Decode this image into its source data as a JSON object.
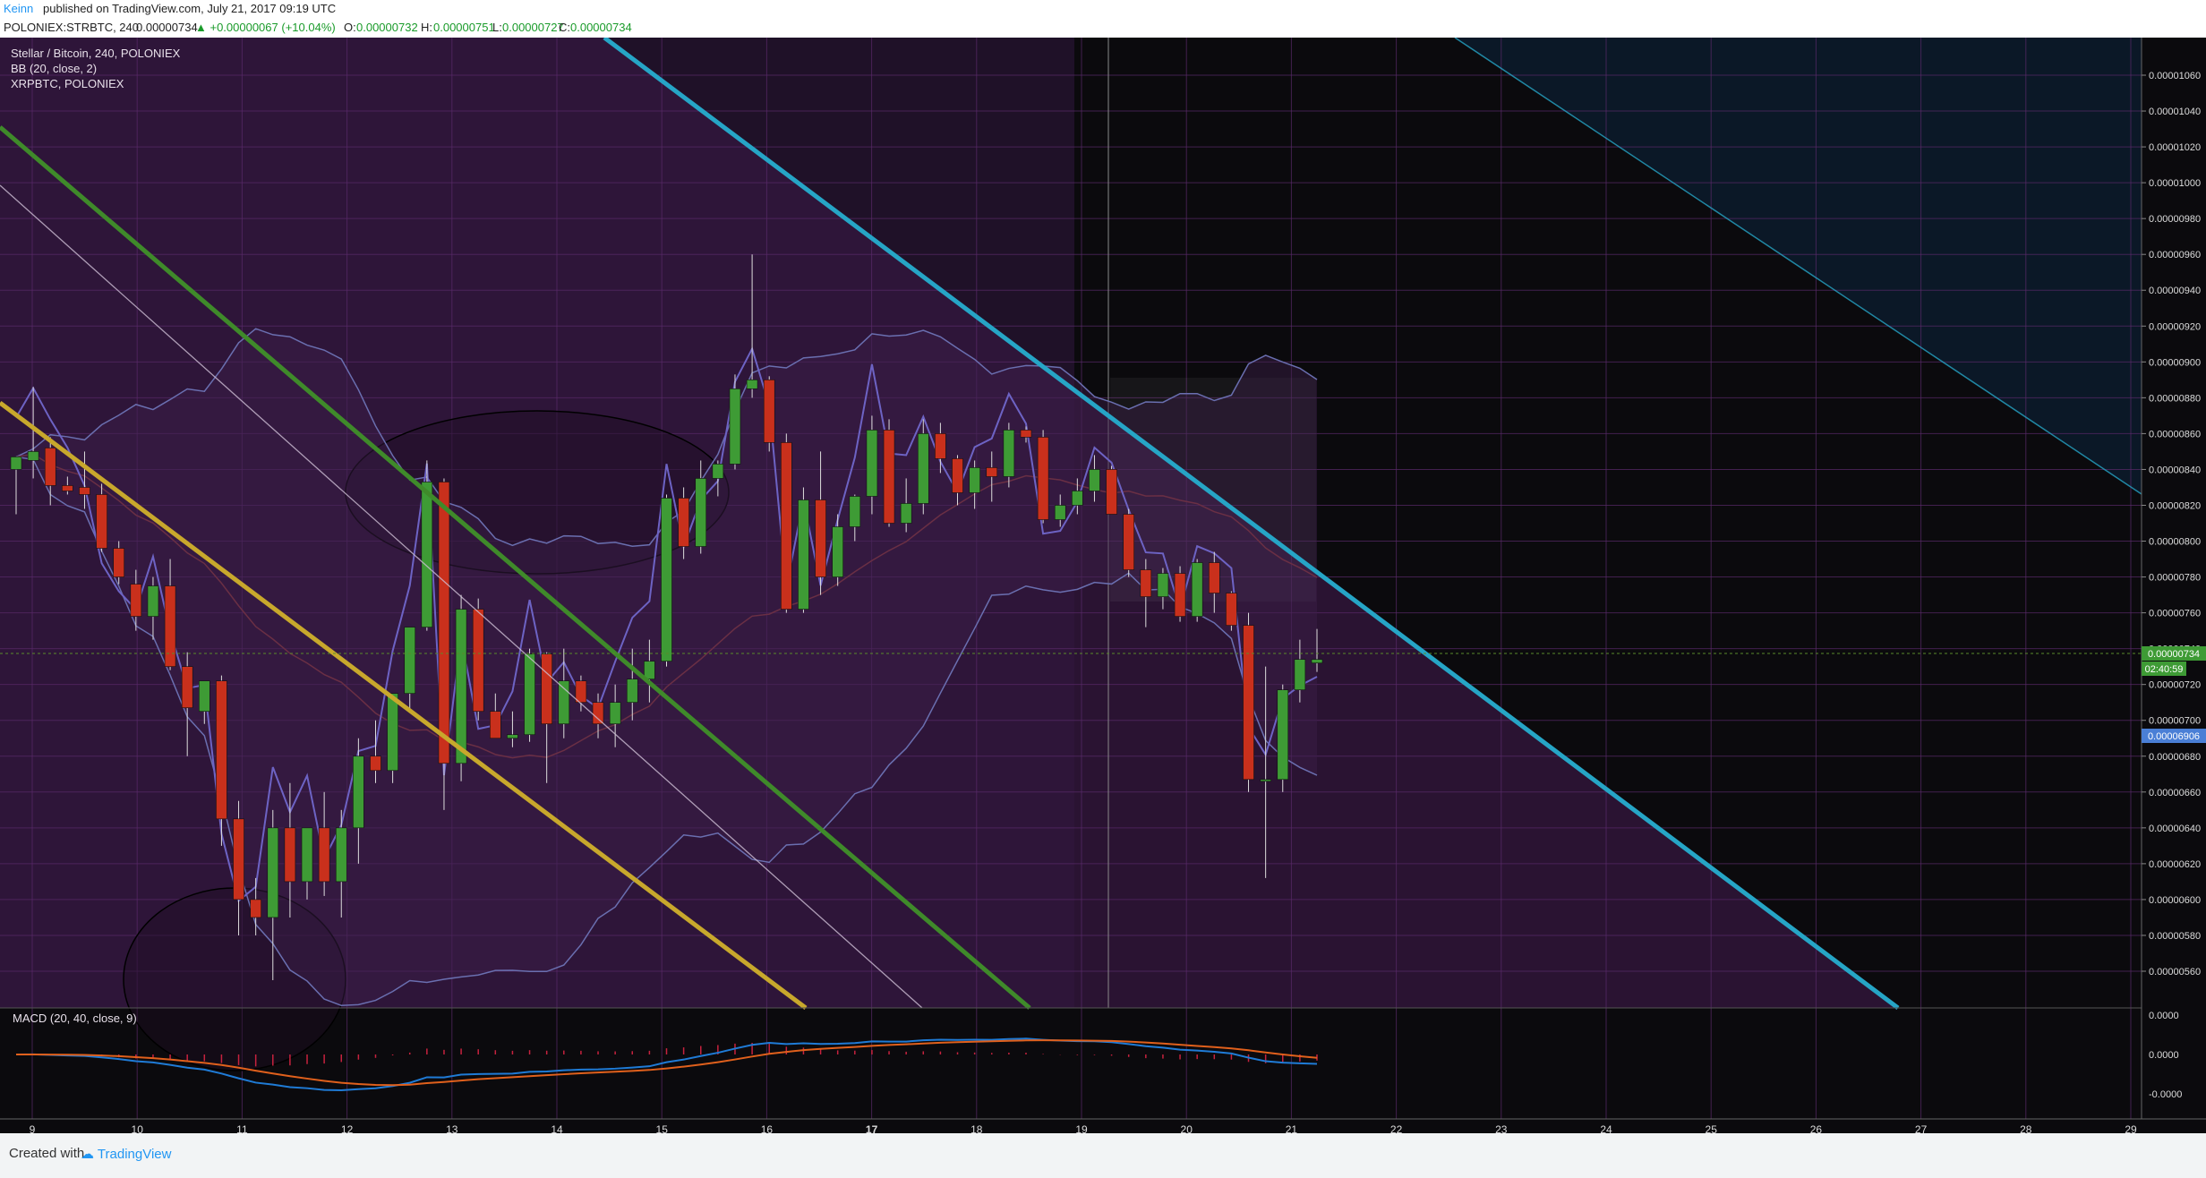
{
  "header": {
    "author": "Keinn",
    "published": "published on TradingView.com, July 21, 2017 09:19 UTC",
    "symbol": "POLONIEX:STRBTC, 240",
    "last": "0.00000734",
    "change": "▲ +0.00000067 (+10.04%)",
    "o_label": "O:",
    "o": "0.00000732",
    "h_label": "H:",
    "h": "0.00000751",
    "l_label": "L:",
    "l": "0.00000727",
    "c_label": "C:",
    "c": "0.00000734"
  },
  "legend": {
    "line1": "Stellar / Bitcoin, 240, POLONIEX",
    "line2": "BB (20, close, 2)",
    "line3": "XRPBTC, POLONIEX"
  },
  "macd_label": "MACD (20, 40, close, 9)",
  "price_badge": "0.00000734",
  "countdown_badge": "02:40:59",
  "compare_badge": "0.00006906",
  "footer": {
    "created_with": "Created with",
    "brand": "TradingView"
  },
  "colors": {
    "bg": "#21112a",
    "band_fill": "#3a1d44",
    "grid": "#5a2a6a",
    "up": "#3e9b35",
    "down": "#c9301c",
    "bb": "#6a2f44",
    "xrp": "#6d63c4",
    "blue_line": "#26a5c6",
    "green_line": "#3f8a2a",
    "yellow_line": "#c8a82c",
    "macd": "#1f7bd6",
    "signal": "#e0601c",
    "hist": "#c6223e"
  },
  "chart_data": {
    "type": "candlestick",
    "title": "Stellar / Bitcoin, 240, POLONIEX",
    "x_tick_labels": [
      "9",
      "10",
      "11",
      "12",
      "13",
      "14",
      "15",
      "16",
      "17",
      "18",
      "19",
      "20",
      "21",
      "22",
      "23",
      "24",
      "25",
      "26",
      "27",
      "28",
      "29"
    ],
    "y_tick_labels": [
      "0.00001060",
      "0.00001040",
      "0.00001020",
      "0.00001000",
      "0.00000980",
      "0.00000960",
      "0.00000940",
      "0.00000920",
      "0.00000900",
      "0.00000880",
      "0.00000860",
      "0.00000840",
      "0.00000820",
      "0.00000800",
      "0.00000780",
      "0.00000760",
      "0.00000740",
      "0.00000720",
      "0.00000700",
      "0.00000680",
      "0.00000660",
      "0.00000640",
      "0.00000620",
      "0.00000600",
      "0.00000580",
      "0.00000560"
    ],
    "ylim": [
      5.4e-06,
      1.07e-05
    ],
    "candles": [
      {
        "o": 8.4e-06,
        "h": 8.46e-06,
        "l": 8.15e-06,
        "c": 8.47e-06
      },
      {
        "o": 8.45e-06,
        "h": 8.86e-06,
        "l": 8.35e-06,
        "c": 8.5e-06
      },
      {
        "o": 8.52e-06,
        "h": 8.58e-06,
        "l": 8.2e-06,
        "c": 8.31e-06
      },
      {
        "o": 8.31e-06,
        "h": 8.36e-06,
        "l": 8.26e-06,
        "c": 8.28e-06
      },
      {
        "o": 8.3e-06,
        "h": 8.5e-06,
        "l": 8.18e-06,
        "c": 8.26e-06
      },
      {
        "o": 8.26e-06,
        "h": 8.32e-06,
        "l": 7.94e-06,
        "c": 7.96e-06
      },
      {
        "o": 7.96e-06,
        "h": 8e-06,
        "l": 7.76e-06,
        "c": 7.8e-06
      },
      {
        "o": 7.76e-06,
        "h": 7.84e-06,
        "l": 7.5e-06,
        "c": 7.58e-06
      },
      {
        "o": 7.58e-06,
        "h": 7.8e-06,
        "l": 7.45e-06,
        "c": 7.75e-06
      },
      {
        "o": 7.75e-06,
        "h": 7.9e-06,
        "l": 7.28e-06,
        "c": 7.3e-06
      },
      {
        "o": 7.3e-06,
        "h": 7.38e-06,
        "l": 6.8e-06,
        "c": 7.07e-06
      },
      {
        "o": 7.05e-06,
        "h": 7.22e-06,
        "l": 6.98e-06,
        "c": 7.22e-06
      },
      {
        "o": 7.22e-06,
        "h": 7.25e-06,
        "l": 6.3e-06,
        "c": 6.45e-06
      },
      {
        "o": 6.45e-06,
        "h": 6.55e-06,
        "l": 5.8e-06,
        "c": 6e-06
      },
      {
        "o": 6e-06,
        "h": 6.12e-06,
        "l": 5.8e-06,
        "c": 5.9e-06
      },
      {
        "o": 5.9e-06,
        "h": 6.5e-06,
        "l": 5.55e-06,
        "c": 6.4e-06
      },
      {
        "o": 6.4e-06,
        "h": 6.65e-06,
        "l": 5.9e-06,
        "c": 6.1e-06
      },
      {
        "o": 6.1e-06,
        "h": 6.4e-06,
        "l": 6e-06,
        "c": 6.4e-06
      },
      {
        "o": 6.4e-06,
        "h": 6.6e-06,
        "l": 6.02e-06,
        "c": 6.1e-06
      },
      {
        "o": 6.1e-06,
        "h": 6.5e-06,
        "l": 5.9e-06,
        "c": 6.4e-06
      },
      {
        "o": 6.4e-06,
        "h": 6.9e-06,
        "l": 6.2e-06,
        "c": 6.8e-06
      },
      {
        "o": 6.8e-06,
        "h": 7e-06,
        "l": 6.65e-06,
        "c": 6.72e-06
      },
      {
        "o": 6.72e-06,
        "h": 7.15e-06,
        "l": 6.65e-06,
        "c": 7.15e-06
      },
      {
        "o": 7.15e-06,
        "h": 7.5e-06,
        "l": 7.05e-06,
        "c": 7.52e-06
      },
      {
        "o": 7.52e-06,
        "h": 8.45e-06,
        "l": 7.5e-06,
        "c": 8.33e-06
      },
      {
        "o": 8.33e-06,
        "h": 8.35e-06,
        "l": 6.5e-06,
        "c": 6.76e-06
      },
      {
        "o": 6.76e-06,
        "h": 7.7e-06,
        "l": 6.66e-06,
        "c": 7.62e-06
      },
      {
        "o": 7.62e-06,
        "h": 7.68e-06,
        "l": 7e-06,
        "c": 7.05e-06
      },
      {
        "o": 7.05e-06,
        "h": 7.15e-06,
        "l": 6.9e-06,
        "c": 6.9e-06
      },
      {
        "o": 6.9e-06,
        "h": 7.05e-06,
        "l": 6.85e-06,
        "c": 6.92e-06
      },
      {
        "o": 6.92e-06,
        "h": 7.4e-06,
        "l": 6.88e-06,
        "c": 7.37e-06
      },
      {
        "o": 7.37e-06,
        "h": 7.38e-06,
        "l": 6.65e-06,
        "c": 6.98e-06
      },
      {
        "o": 6.98e-06,
        "h": 7.4e-06,
        "l": 6.9e-06,
        "c": 7.22e-06
      },
      {
        "o": 7.22e-06,
        "h": 7.25e-06,
        "l": 7.05e-06,
        "c": 7.1e-06
      },
      {
        "o": 7.1e-06,
        "h": 7.15e-06,
        "l": 6.9e-06,
        "c": 6.98e-06
      },
      {
        "o": 6.98e-06,
        "h": 7.2e-06,
        "l": 6.85e-06,
        "c": 7.1e-06
      },
      {
        "o": 7.1e-06,
        "h": 7.4e-06,
        "l": 7e-06,
        "c": 7.23e-06
      },
      {
        "o": 7.23e-06,
        "h": 7.45e-06,
        "l": 7.1e-06,
        "c": 7.33e-06
      },
      {
        "o": 7.33e-06,
        "h": 8.26e-06,
        "l": 7.3e-06,
        "c": 8.24e-06
      },
      {
        "o": 8.24e-06,
        "h": 8.3e-06,
        "l": 7.9e-06,
        "c": 7.97e-06
      },
      {
        "o": 7.97e-06,
        "h": 8.45e-06,
        "l": 7.93e-06,
        "c": 8.35e-06
      },
      {
        "o": 8.35e-06,
        "h": 8.45e-06,
        "l": 8.25e-06,
        "c": 8.43e-06
      },
      {
        "o": 8.43e-06,
        "h": 8.93e-06,
        "l": 8.4e-06,
        "c": 8.85e-06
      },
      {
        "o": 8.85e-06,
        "h": 9.6e-06,
        "l": 8.8e-06,
        "c": 8.9e-06
      },
      {
        "o": 8.9e-06,
        "h": 8.92e-06,
        "l": 8.5e-06,
        "c": 8.55e-06
      },
      {
        "o": 8.55e-06,
        "h": 8.6e-06,
        "l": 7.6e-06,
        "c": 7.62e-06
      },
      {
        "o": 7.62e-06,
        "h": 8.3e-06,
        "l": 7.6e-06,
        "c": 8.23e-06
      },
      {
        "o": 8.23e-06,
        "h": 8.5e-06,
        "l": 7.7e-06,
        "c": 7.8e-06
      },
      {
        "o": 7.8e-06,
        "h": 8.15e-06,
        "l": 7.75e-06,
        "c": 8.08e-06
      },
      {
        "o": 8.08e-06,
        "h": 8.26e-06,
        "l": 8e-06,
        "c": 8.25e-06
      },
      {
        "o": 8.25e-06,
        "h": 8.7e-06,
        "l": 8.15e-06,
        "c": 8.62e-06
      },
      {
        "o": 8.62e-06,
        "h": 8.68e-06,
        "l": 8.08e-06,
        "c": 8.1e-06
      },
      {
        "o": 8.1e-06,
        "h": 8.35e-06,
        "l": 8.05e-06,
        "c": 8.21e-06
      },
      {
        "o": 8.21e-06,
        "h": 8.68e-06,
        "l": 8.15e-06,
        "c": 8.6e-06
      },
      {
        "o": 8.6e-06,
        "h": 8.66e-06,
        "l": 8.38e-06,
        "c": 8.46e-06
      },
      {
        "o": 8.46e-06,
        "h": 8.48e-06,
        "l": 8.2e-06,
        "c": 8.27e-06
      },
      {
        "o": 8.27e-06,
        "h": 8.45e-06,
        "l": 8.18e-06,
        "c": 8.41e-06
      },
      {
        "o": 8.41e-06,
        "h": 8.5e-06,
        "l": 8.22e-06,
        "c": 8.36e-06
      },
      {
        "o": 8.36e-06,
        "h": 8.66e-06,
        "l": 8.3e-06,
        "c": 8.62e-06
      },
      {
        "o": 8.62e-06,
        "h": 8.64e-06,
        "l": 8.55e-06,
        "c": 8.58e-06
      },
      {
        "o": 8.58e-06,
        "h": 8.62e-06,
        "l": 8.1e-06,
        "c": 8.12e-06
      },
      {
        "o": 8.12e-06,
        "h": 8.26e-06,
        "l": 8.08e-06,
        "c": 8.2e-06
      },
      {
        "o": 8.2e-06,
        "h": 8.35e-06,
        "l": 8.15e-06,
        "c": 8.28e-06
      },
      {
        "o": 8.28e-06,
        "h": 8.48e-06,
        "l": 8.22e-06,
        "c": 8.4e-06
      },
      {
        "o": 8.4e-06,
        "h": 8.42e-06,
        "l": 8.15e-06,
        "c": 8.15e-06
      },
      {
        "o": 8.15e-06,
        "h": 8.18e-06,
        "l": 7.8e-06,
        "c": 7.84e-06
      },
      {
        "o": 7.84e-06,
        "h": 7.9e-06,
        "l": 7.52e-06,
        "c": 7.69e-06
      },
      {
        "o": 7.69e-06,
        "h": 7.85e-06,
        "l": 7.62e-06,
        "c": 7.82e-06
      },
      {
        "o": 7.82e-06,
        "h": 7.86e-06,
        "l": 7.55e-06,
        "c": 7.58e-06
      },
      {
        "o": 7.58e-06,
        "h": 7.9e-06,
        "l": 7.55e-06,
        "c": 7.88e-06
      },
      {
        "o": 7.88e-06,
        "h": 7.94e-06,
        "l": 7.6e-06,
        "c": 7.71e-06
      },
      {
        "o": 7.71e-06,
        "h": 7.72e-06,
        "l": 7.5e-06,
        "c": 7.53e-06
      },
      {
        "o": 7.53e-06,
        "h": 7.6e-06,
        "l": 6.6e-06,
        "c": 6.67e-06
      },
      {
        "o": 6.67e-06,
        "h": 7.3e-06,
        "l": 6.12e-06,
        "c": 6.67e-06
      },
      {
        "o": 6.67e-06,
        "h": 7.2e-06,
        "l": 6.6e-06,
        "c": 7.17e-06
      },
      {
        "o": 7.17e-06,
        "h": 7.45e-06,
        "l": 7.1e-06,
        "c": 7.34e-06
      },
      {
        "o": 7.32e-06,
        "h": 7.51e-06,
        "l": 7.27e-06,
        "c": 7.34e-06
      }
    ]
  }
}
